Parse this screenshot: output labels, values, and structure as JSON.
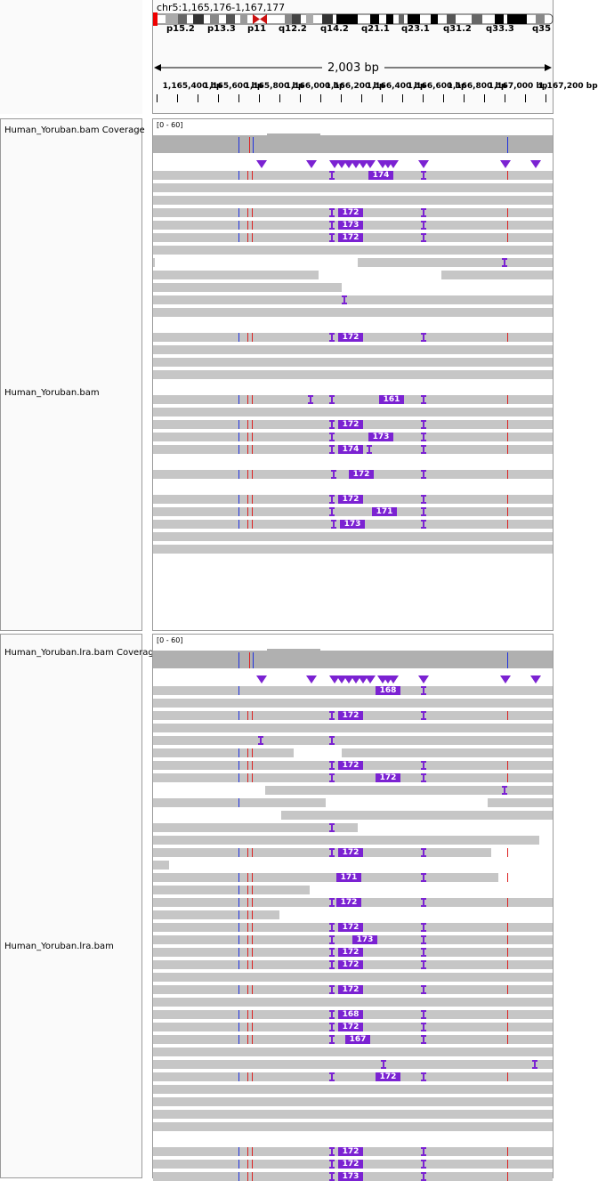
{
  "header": {
    "locus": "chr5:1,165,176-1,167,177",
    "span_label": "2,003 bp",
    "cytobands": [
      "p15.2",
      "p13.3",
      "p11",
      "q12.2",
      "q14.2",
      "q21.1",
      "q23.1",
      "q31.2",
      "q33.3",
      "q35"
    ],
    "ruler_ticks": [
      "1,165,400 bp",
      "1,165,600 bp",
      "1,165,800 bp",
      "1,166,000 bp",
      "1,166,200 bp",
      "1,166,400 bp",
      "1,166,600 bp",
      "1,166,800 bp",
      "1,167,000 bp",
      "1,167,200 bp"
    ]
  },
  "tracks": [
    {
      "coverage_name": "Human_Yoruban.bam Coverage",
      "alignment_name": "Human_Yoruban.bam",
      "range": "[0 - 60]",
      "insertion_labels": [
        "174",
        "172",
        "173",
        "172",
        "172",
        "161",
        "172",
        "173",
        "174",
        "172",
        "172",
        "171",
        "173"
      ]
    },
    {
      "coverage_name": "Human_Yoruban.lra.bam Coverage",
      "alignment_name": "Human_Yoruban.lra.bam",
      "range": "[0 - 60]",
      "insertion_labels": [
        "168",
        "172",
        "172",
        "172",
        "172",
        "171",
        "172",
        "172",
        "173",
        "172",
        "172",
        "172",
        "168",
        "172",
        "167",
        "172",
        "172",
        "172",
        "173"
      ]
    }
  ],
  "colors": {
    "read": "#c6c6c6",
    "coverage": "#b0b0b0",
    "insertion": "#7b22d2",
    "snp_blue": "#2233dd",
    "snp_red": "#dd2222"
  }
}
